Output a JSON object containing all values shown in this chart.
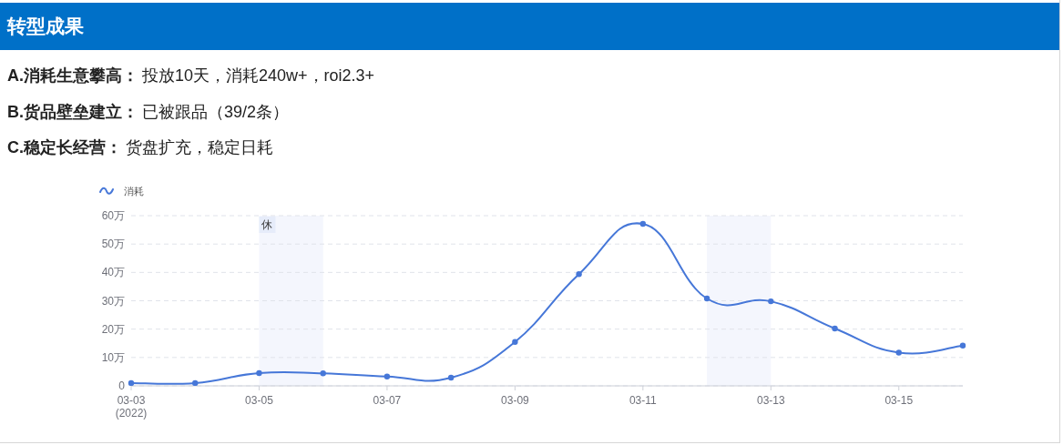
{
  "chart_data": {
    "type": "line",
    "title": "转型成果",
    "annotations": [
      "A.消耗生意攀高：",
      "投放10天，消耗240w+，roi2.3+",
      "B.货品壁垒建立：",
      "已被跟品（39/2条）",
      "C.稳定长经营：",
      "货盘扩充，稳定日耗"
    ],
    "x": [
      "2022-03-03",
      "2022-03-04",
      "2022-03-05",
      "2022-03-06",
      "2022-03-07",
      "2022-03-08",
      "2022-03-09",
      "2022-03-10",
      "2022-03-11",
      "2022-03-12",
      "2022-03-13",
      "2022-03-14",
      "2022-03-15",
      "2022-03-16"
    ],
    "series": [
      {
        "name": "消耗",
        "color": "#4677d8",
        "values": [
          1,
          1,
          4.5,
          4.4,
          3.3,
          2.9,
          15.5,
          39.4,
          57.1,
          30.8,
          29.8,
          20.2,
          11.7,
          14.2
        ]
      }
    ],
    "xlim": [
      "2022-03-03",
      "2022-03-16"
    ],
    "xticks": [
      {
        "value": "2022-03-03",
        "label": "03-03\n(2022)"
      },
      {
        "value": "2022-03-05",
        "label": "03-05"
      },
      {
        "value": "2022-03-07",
        "label": "03-07"
      },
      {
        "value": "2022-03-09",
        "label": "03-09"
      },
      {
        "value": "2022-03-11",
        "label": "03-11"
      },
      {
        "value": "2022-03-13",
        "label": "03-13"
      },
      {
        "value": "2022-03-15",
        "label": "03-15"
      }
    ],
    "ylim": [
      0,
      60
    ],
    "yticks": [
      0,
      {
        "value": 10,
        "label": "10万"
      },
      {
        "value": 20,
        "label": "20万"
      },
      {
        "value": 30,
        "label": "30万"
      },
      {
        "value": 40,
        "label": "40万"
      },
      {
        "value": 50,
        "label": "50万"
      },
      {
        "value": 60,
        "label": "60万"
      }
    ],
    "bands": [
      {
        "axis": "x",
        "from": "2022-03-05",
        "to": "2022-03-06",
        "label": "休",
        "color": "#f4f6fd"
      },
      {
        "axis": "x",
        "from": "2022-03-12",
        "to": "2022-03-13",
        "color": "#f4f6fd"
      }
    ],
    "grid": "y",
    "legend": "top left",
    "marker": "circle",
    "line_style": "solid"
  }
}
